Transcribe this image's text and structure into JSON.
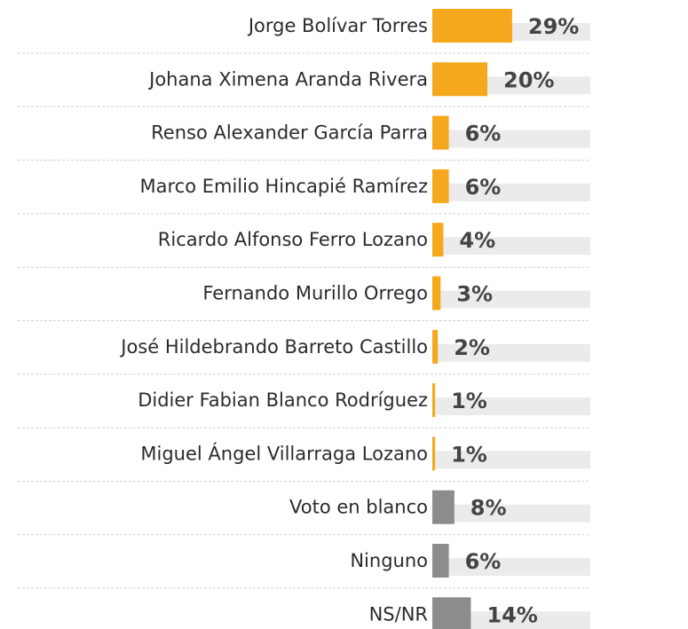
{
  "chart_data": {
    "type": "bar",
    "orientation": "horizontal",
    "categories": [
      "Jorge Bolívar Torres",
      "Johana Ximena Aranda Rivera",
      "Renso Alexander García Parra",
      "Marco Emilio Hincapié Ramírez",
      "Ricardo Alfonso Ferro Lozano",
      "Fernando Murillo Orrego",
      "José Hildebrando Barreto Castillo",
      "Didier Fabian Blanco Rodríguez",
      "Miguel Ángel Villarraga Lozano",
      "Voto en blanco",
      "Ninguno",
      "NS/NR"
    ],
    "values": [
      29,
      20,
      6,
      6,
      4,
      3,
      2,
      1,
      1,
      8,
      6,
      14
    ],
    "value_labels": [
      "29%",
      "20%",
      "6%",
      "6%",
      "4%",
      "3%",
      "2%",
      "1%",
      "1%",
      "8%",
      "6%",
      "14%"
    ],
    "colors": [
      "#f5a81c",
      "#f5a81c",
      "#f5a81c",
      "#f5a81c",
      "#f5a81c",
      "#f5a81c",
      "#f5a81c",
      "#f5a81c",
      "#f5a81c",
      "#8c8c8c",
      "#8c8c8c",
      "#8c8c8c"
    ]
  }
}
